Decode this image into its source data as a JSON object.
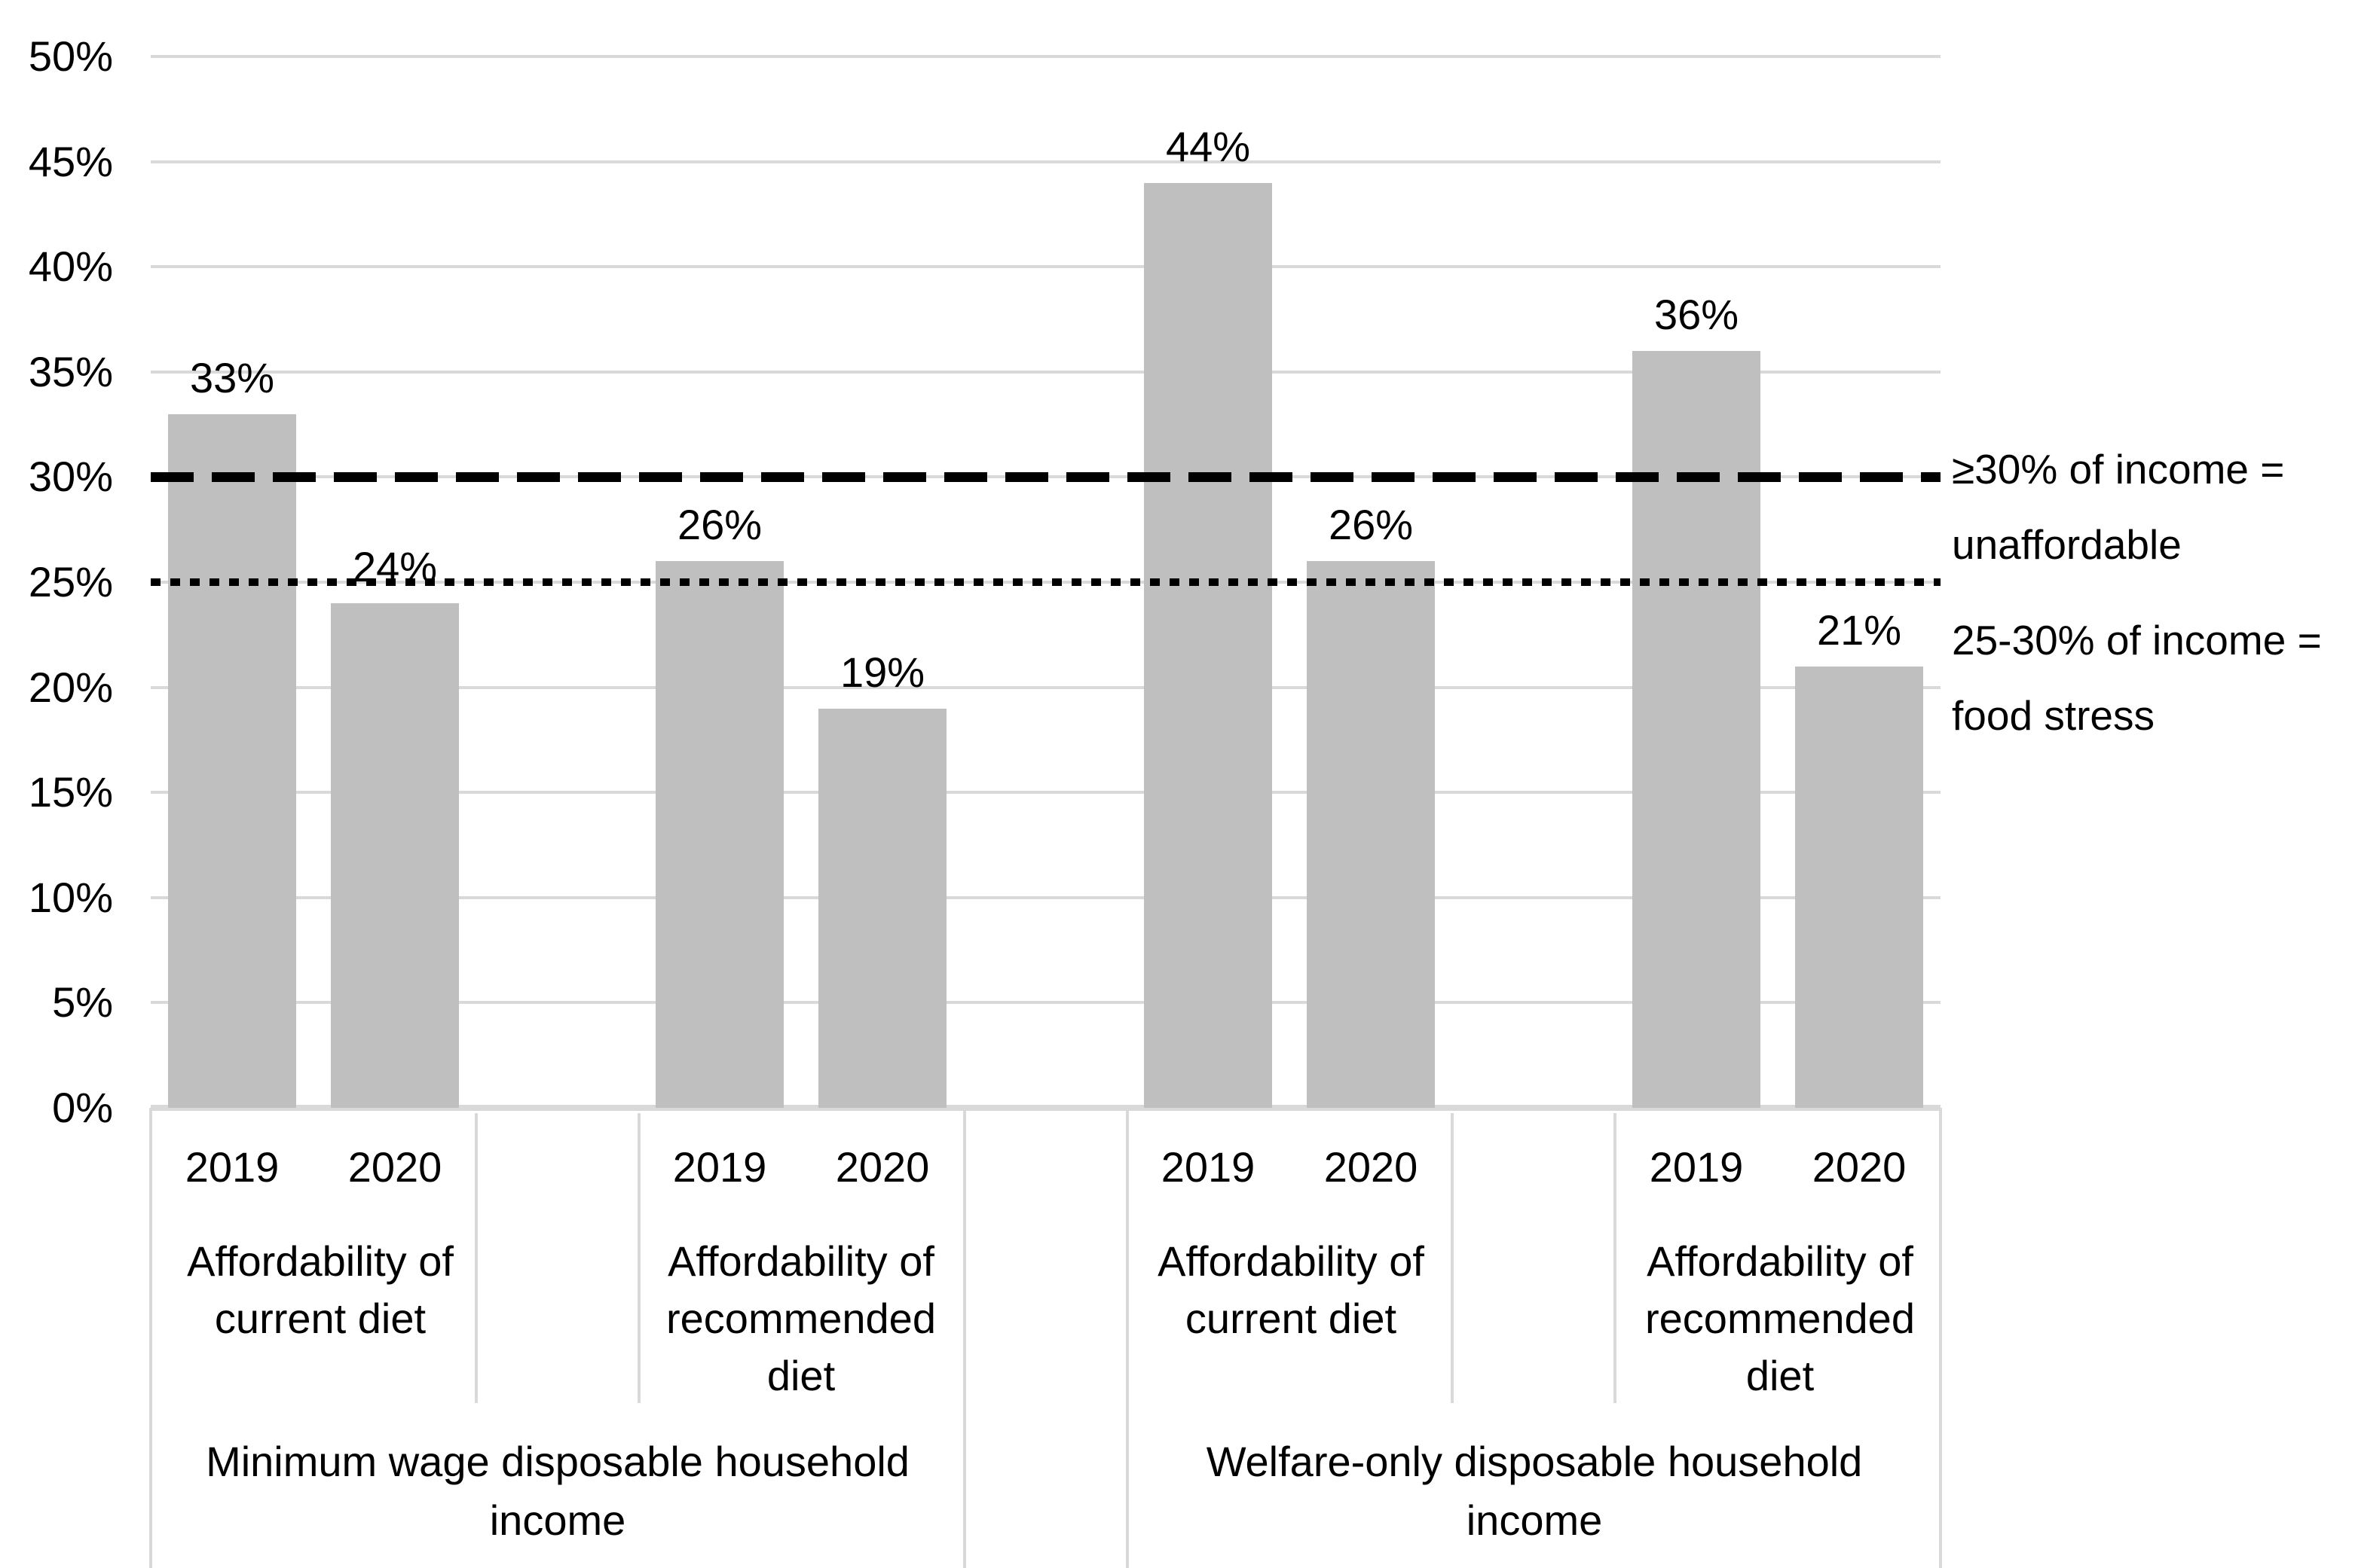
{
  "chart_data": {
    "type": "bar",
    "title": "",
    "xlabel": "",
    "ylabel": "",
    "y_axis": {
      "ticks": [
        "50%",
        "45%",
        "40%",
        "35%",
        "30%",
        "25%",
        "20%",
        "15%",
        "10%",
        "5%",
        "0%"
      ],
      "min": 0,
      "max": 50,
      "unit": "%",
      "grid": true
    },
    "bar_color": "#bfbfbf",
    "gridline_color": "#d9d9d9",
    "groups": [
      {
        "label": "Minimum wage disposable household income",
        "label_lines": [
          "Minimum wage disposable household",
          "income"
        ],
        "subgroups": [
          {
            "label": "Affordability of current diet",
            "label_lines": [
              "Affordability of",
              "current diet"
            ],
            "categories": [
              "2019",
              "2020"
            ],
            "values": [
              33,
              24
            ],
            "value_labels": [
              "33%",
              "24%"
            ]
          },
          {
            "label": "Affordability of recommended diet",
            "label_lines": [
              "Affordability of",
              "recommended",
              "diet"
            ],
            "categories": [
              "2019",
              "2020"
            ],
            "values": [
              26,
              19
            ],
            "value_labels": [
              "26%",
              "19%"
            ]
          }
        ]
      },
      {
        "label": "Welfare-only disposable household income",
        "label_lines": [
          "Welfare-only disposable household",
          "income"
        ],
        "subgroups": [
          {
            "label": "Affordability of current diet",
            "label_lines": [
              "Affordability of",
              "current diet"
            ],
            "categories": [
              "2019",
              "2020"
            ],
            "values": [
              44,
              26
            ],
            "value_labels": [
              "44%",
              "26%"
            ]
          },
          {
            "label": "Affordability of recommended diet",
            "label_lines": [
              "Affordability of",
              "recommended",
              "diet"
            ],
            "categories": [
              "2019",
              "2020"
            ],
            "values": [
              36,
              21
            ],
            "value_labels": [
              "36%",
              "21%"
            ]
          }
        ]
      }
    ],
    "reference_lines": [
      {
        "value": 30,
        "style": "dashed",
        "color": "#000000",
        "label": "≥30% of income = unaffordable",
        "label_lines": [
          "≥30% of income =",
          "unaffordable"
        ]
      },
      {
        "value": 25,
        "style": "dotted",
        "color": "#000000",
        "label": "25-30% of income = food stress",
        "label_lines": [
          "25-30% of income =",
          "food stress"
        ]
      }
    ]
  }
}
